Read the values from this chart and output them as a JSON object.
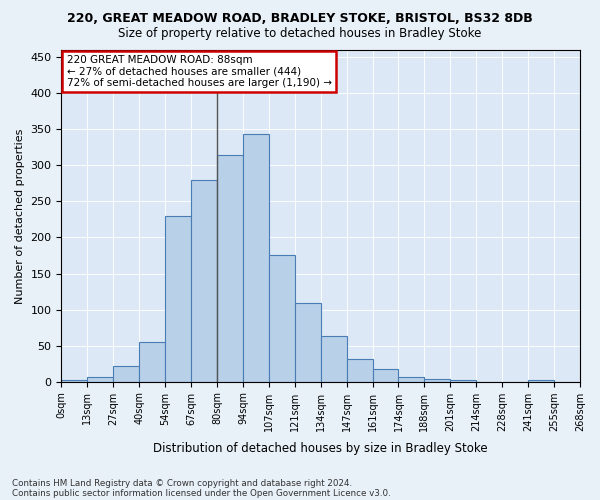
{
  "title1": "220, GREAT MEADOW ROAD, BRADLEY STOKE, BRISTOL, BS32 8DB",
  "title2": "Size of property relative to detached houses in Bradley Stoke",
  "xlabel": "Distribution of detached houses by size in Bradley Stoke",
  "ylabel": "Number of detached properties",
  "footnote1": "Contains HM Land Registry data © Crown copyright and database right 2024.",
  "footnote2": "Contains public sector information licensed under the Open Government Licence v3.0.",
  "bin_labels": [
    "0sqm",
    "13sqm",
    "27sqm",
    "40sqm",
    "54sqm",
    "67sqm",
    "80sqm",
    "94sqm",
    "107sqm",
    "121sqm",
    "134sqm",
    "147sqm",
    "161sqm",
    "174sqm",
    "188sqm",
    "201sqm",
    "214sqm",
    "228sqm",
    "241sqm",
    "255sqm",
    "268sqm"
  ],
  "bar_heights": [
    2,
    7,
    22,
    55,
    230,
    280,
    315,
    343,
    176,
    109,
    63,
    32,
    18,
    6,
    4,
    2,
    0,
    0,
    2,
    0
  ],
  "bar_color": "#b8d0e8",
  "bar_edge_color": "#4a7db5",
  "annotation_title": "220 GREAT MEADOW ROAD: 88sqm",
  "annotation_line2": "← 27% of detached houses are smaller (444)",
  "annotation_line3": "72% of semi-detached houses are larger (1,190) →",
  "annotation_box_color": "#ffffff",
  "annotation_box_edge": "#cc0000",
  "vline_color": "#555555",
  "vline_x_index": 6,
  "ylim": [
    0,
    460
  ],
  "yticks": [
    0,
    50,
    100,
    150,
    200,
    250,
    300,
    350,
    400,
    450
  ],
  "background_color": "#e8f0f8",
  "plot_bg_color": "#dce8f5"
}
